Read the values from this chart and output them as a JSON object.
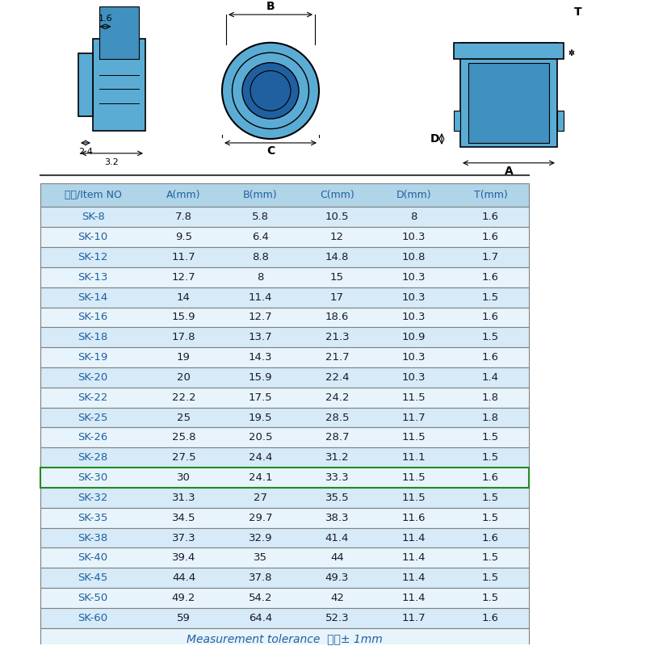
{
  "bg_color": "#ffffff",
  "diagram_bg": "#f0f8ff",
  "table_header_bg": "#b0d4e8",
  "table_row_bg1": "#d6eaf8",
  "table_row_bg2": "#e8f4fb",
  "table_border_color": "#808080",
  "sk30_border_color": "#228B22",
  "text_color_blue": "#2060a0",
  "text_color_dark": "#1a1a2e",
  "text_color_black": "#000000",
  "header_row": [
    "型号/Item NO",
    "A(mm)",
    "B(mm)",
    "C(mm)",
    "D(mm)",
    "T(mm)"
  ],
  "table_data": [
    [
      "SK-8",
      "7.8",
      "5.8",
      "10.5",
      "8",
      "1.6"
    ],
    [
      "SK-10",
      "9.5",
      "6.4",
      "12",
      "10.3",
      "1.6"
    ],
    [
      "SK-12",
      "11.7",
      "8.8",
      "14.8",
      "10.8",
      "1.7"
    ],
    [
      "SK-13",
      "12.7",
      "8",
      "15",
      "10.3",
      "1.6"
    ],
    [
      "SK-14",
      "14",
      "11.4",
      "17",
      "10.3",
      "1.5"
    ],
    [
      "SK-16",
      "15.9",
      "12.7",
      "18.6",
      "10.3",
      "1.6"
    ],
    [
      "SK-18",
      "17.8",
      "13.7",
      "21.3",
      "10.9",
      "1.5"
    ],
    [
      "SK-19",
      "19",
      "14.3",
      "21.7",
      "10.3",
      "1.6"
    ],
    [
      "SK-20",
      "20",
      "15.9",
      "22.4",
      "10.3",
      "1.4"
    ],
    [
      "SK-22",
      "22.2",
      "17.5",
      "24.2",
      "11.5",
      "1.8"
    ],
    [
      "SK-25",
      "25",
      "19.5",
      "28.5",
      "11.7",
      "1.8"
    ],
    [
      "SK-26",
      "25.8",
      "20.5",
      "28.7",
      "11.5",
      "1.5"
    ],
    [
      "SK-28",
      "27.5",
      "24.4",
      "31.2",
      "11.1",
      "1.5"
    ],
    [
      "SK-30",
      "30",
      "24.1",
      "33.3",
      "11.5",
      "1.6"
    ],
    [
      "SK-32",
      "31.3",
      "27",
      "35.5",
      "11.5",
      "1.5"
    ],
    [
      "SK-35",
      "34.5",
      "29.7",
      "38.3",
      "11.6",
      "1.5"
    ],
    [
      "SK-38",
      "37.3",
      "32.9",
      "41.4",
      "11.4",
      "1.6"
    ],
    [
      "SK-40",
      "39.4",
      "35",
      "44",
      "11.4",
      "1.5"
    ],
    [
      "SK-45",
      "44.4",
      "37.8",
      "49.3",
      "11.4",
      "1.5"
    ],
    [
      "SK-50",
      "49.2",
      "54.2",
      "42",
      "11.4",
      "1.5"
    ],
    [
      "SK-60",
      "59",
      "64.4",
      "52.3",
      "11.7",
      "1.6"
    ]
  ],
  "footer_text": "Measurement tolerance  公差± 1mm",
  "dim_labels": {
    "16_top": "1.6",
    "24": "2.4",
    "32": "3.2",
    "B": "B",
    "C": "C",
    "A": "A",
    "D": "D",
    "T": "T"
  }
}
